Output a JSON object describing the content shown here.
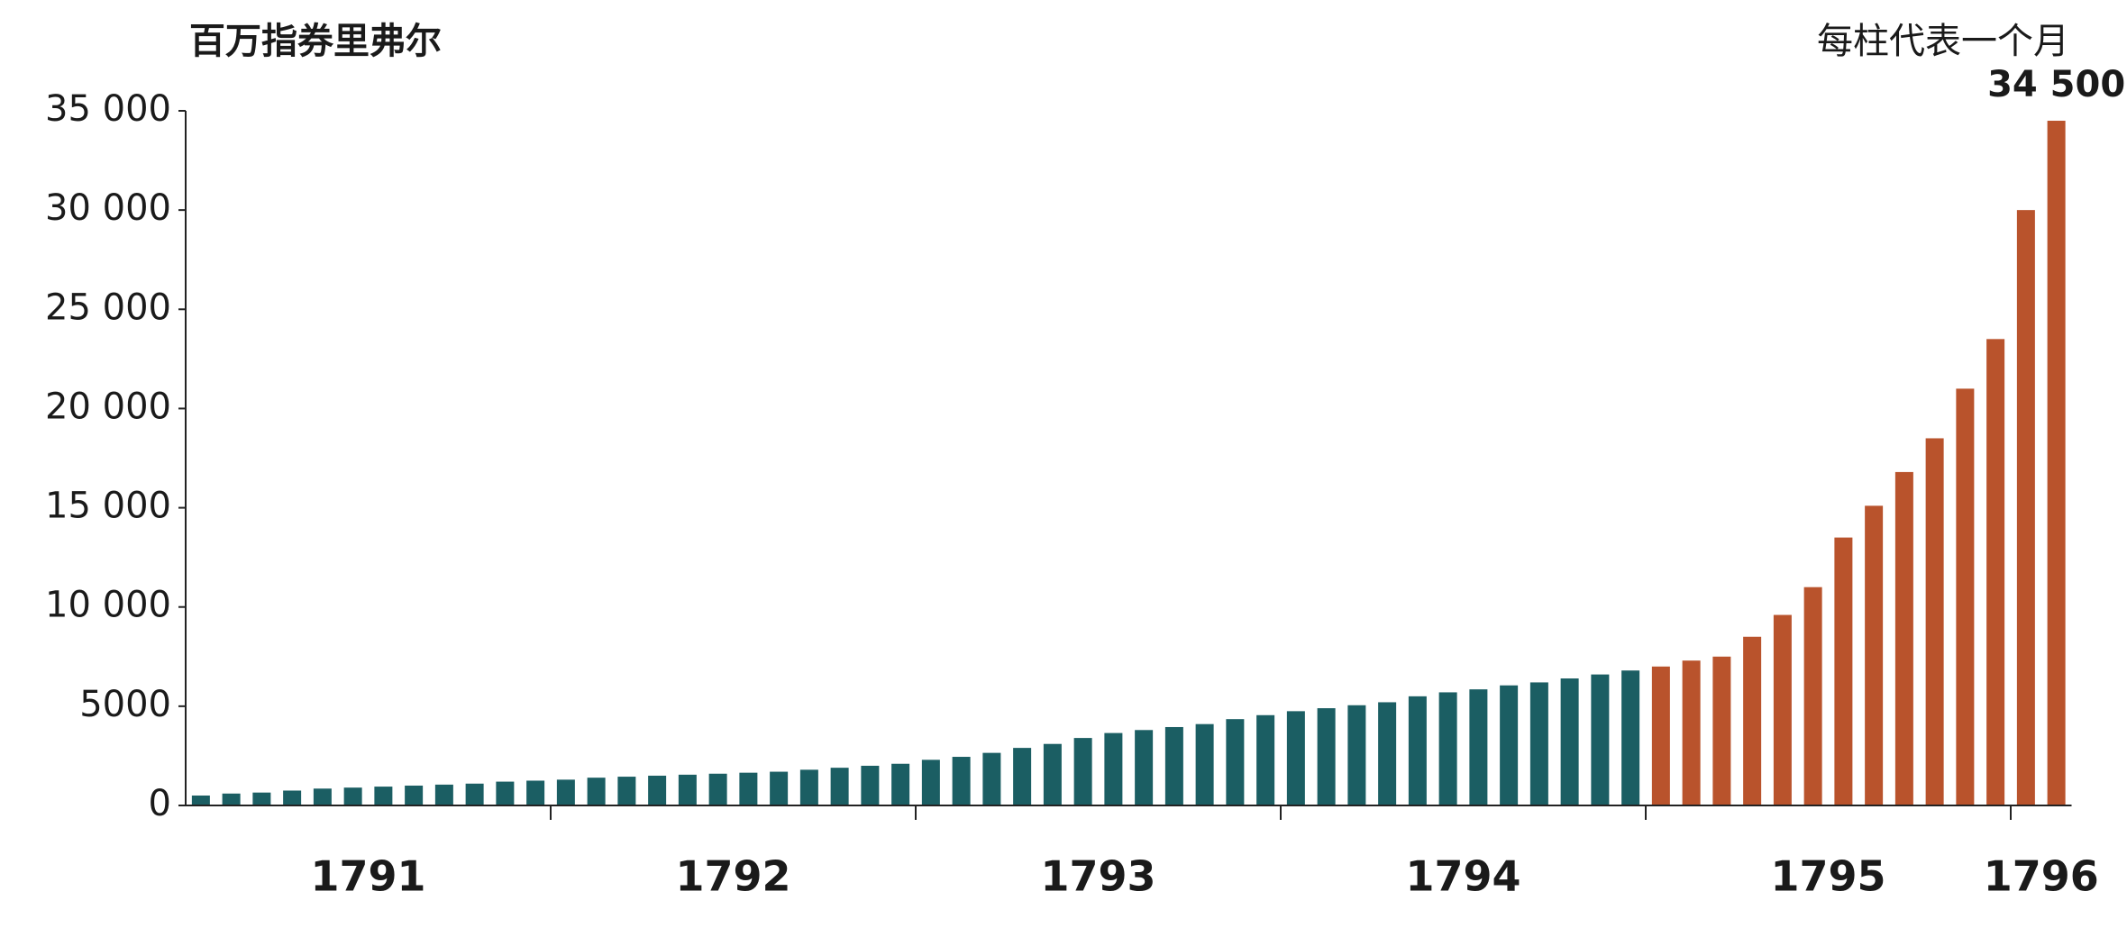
{
  "chart_data": {
    "type": "bar",
    "title": "百万指券里弗尔",
    "note": "每柱代表一个月",
    "year_labels": [
      "1791",
      "1792",
      "1793",
      "1794",
      "1795",
      "1796"
    ],
    "series": [
      {
        "color": "#1b5e63",
        "values": [
          500,
          600,
          650,
          750,
          850,
          900,
          950,
          1000,
          1050,
          1100,
          1200,
          1250,
          1300,
          1400,
          1450,
          1500,
          1550,
          1600,
          1650,
          1700,
          1800,
          1900,
          2000,
          2100,
          2300,
          2450,
          2650,
          2900,
          3100,
          3400,
          3650,
          3800,
          3950,
          4100,
          4350,
          4550,
          4750,
          4900,
          5050,
          5200,
          5500,
          5700,
          5850,
          6050,
          6200,
          6400,
          6600,
          6800,
          null,
          null,
          null,
          null,
          null,
          null,
          null,
          null,
          null,
          null,
          null,
          null,
          null,
          null
        ]
      },
      {
        "color": "#b9532c",
        "values": [
          null,
          null,
          null,
          null,
          null,
          null,
          null,
          null,
          null,
          null,
          null,
          null,
          null,
          null,
          null,
          null,
          null,
          null,
          null,
          null,
          null,
          null,
          null,
          null,
          null,
          null,
          null,
          null,
          null,
          null,
          null,
          null,
          null,
          null,
          null,
          null,
          null,
          null,
          null,
          null,
          null,
          null,
          null,
          null,
          null,
          null,
          null,
          null,
          7000,
          7300,
          7500,
          8500,
          9600,
          11000,
          13500,
          15100,
          16800,
          18500,
          21000,
          23500,
          30000,
          34500
        ],
        "value_labels": [
          null,
          null,
          null,
          null,
          null,
          null,
          null,
          null,
          null,
          null,
          null,
          null,
          null,
          null,
          null,
          null,
          null,
          null,
          null,
          null,
          null,
          null,
          null,
          null,
          null,
          null,
          null,
          null,
          null,
          null,
          null,
          null,
          null,
          null,
          null,
          null,
          null,
          null,
          null,
          null,
          null,
          null,
          null,
          null,
          null,
          null,
          null,
          null,
          null,
          null,
          null,
          null,
          null,
          null,
          null,
          null,
          null,
          null,
          null,
          null,
          null,
          "34 500"
        ]
      }
    ],
    "ylim": [
      0,
      35000
    ],
    "yticks": [
      0,
      5000,
      {
        "value": 10000,
        "label": "10 000"
      },
      {
        "value": 15000,
        "label": "15 000"
      },
      {
        "value": 20000,
        "label": "20 000"
      },
      {
        "value": 25000,
        "label": "25 000"
      },
      {
        "value": 30000,
        "label": "30 000"
      },
      {
        "value": 35000,
        "label": "35 000"
      }
    ]
  }
}
